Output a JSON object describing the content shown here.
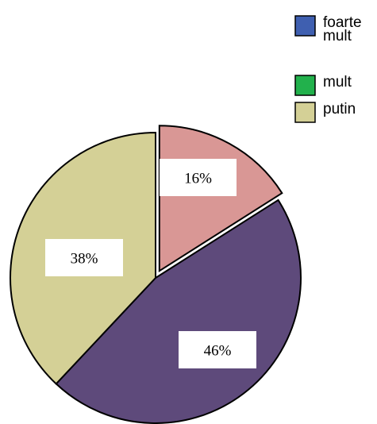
{
  "chart_data": {
    "type": "pie",
    "slices": [
      {
        "label": "16%",
        "value": 16,
        "color": "#d99795"
      },
      {
        "label": "46%",
        "value": 46,
        "color": "#5e4a7b"
      },
      {
        "label": "38%",
        "value": 38,
        "color": "#d4d096"
      }
    ],
    "legend": {
      "placement": "top-right",
      "entries": [
        {
          "lines": [
            "foarte",
            "mult"
          ],
          "color": "#3f5fb0"
        },
        {
          "lines": [
            "mult"
          ],
          "color": "#22b14c"
        },
        {
          "lines": [
            "putin"
          ],
          "color": "#d4d096"
        }
      ]
    }
  }
}
